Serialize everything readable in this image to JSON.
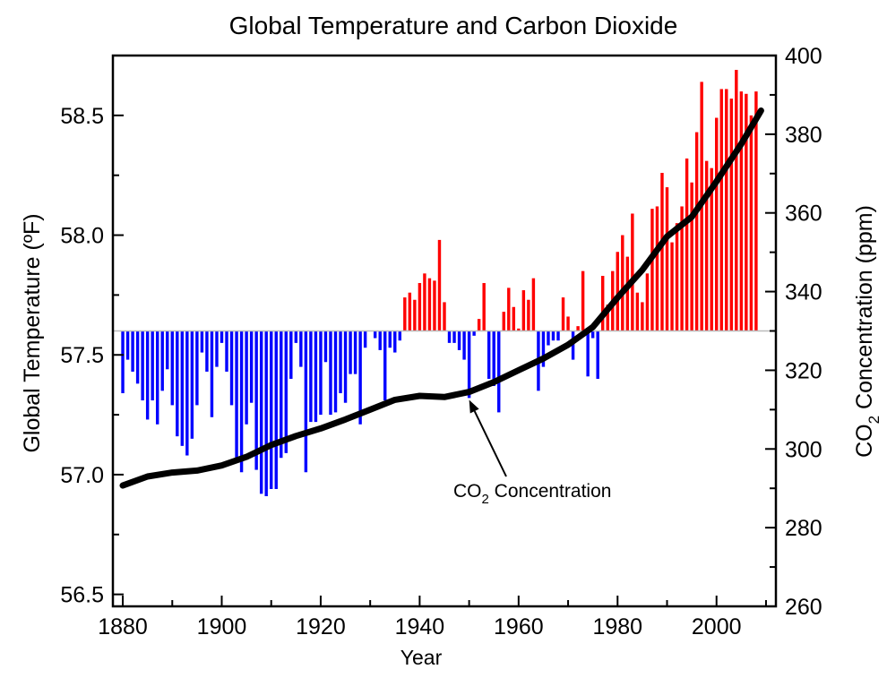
{
  "chart_data": {
    "type": "bar",
    "title": "Global Temperature and Carbon Dioxide",
    "xlabel": "Year",
    "ylabel_left": "Global Temperature (ºF)",
    "ylabel_right": {
      "prefix": "CO",
      "sub": "2",
      "suffix": " Concentration (ppm)"
    },
    "xlim": [
      1878,
      2012
    ],
    "ylim_left": [
      56.45,
      58.75
    ],
    "ylim_right": [
      260,
      400
    ],
    "x_ticks": [
      1880,
      1900,
      1920,
      1940,
      1960,
      1980,
      2000
    ],
    "x_tick_labels": [
      "1880",
      "1900",
      "1920",
      "1940",
      "1960",
      "1980",
      "2000"
    ],
    "y_left_ticks": [
      56.5,
      57.0,
      57.5,
      58.0,
      58.5
    ],
    "y_left_tick_labels": [
      "56.5",
      "57.0",
      "57.5",
      "58.0",
      "58.5"
    ],
    "y_right_ticks": [
      260,
      280,
      300,
      320,
      340,
      360,
      380,
      400
    ],
    "y_right_tick_labels": [
      "260",
      "280",
      "300",
      "320",
      "340",
      "360",
      "380",
      "400"
    ],
    "baseline": 57.6,
    "colors": {
      "above": "#ff0000",
      "below": "#0000ff",
      "co2_line": "#000000",
      "baseline": "#bbbbbb"
    },
    "series": [
      {
        "kind": "bar",
        "axis": "left",
        "start_year": 1880,
        "values": [
          57.34,
          57.48,
          57.43,
          57.38,
          57.31,
          57.23,
          57.31,
          57.21,
          57.35,
          57.44,
          57.29,
          57.16,
          57.12,
          57.08,
          57.15,
          57.29,
          57.51,
          57.43,
          57.24,
          57.45,
          57.55,
          57.43,
          57.29,
          57.07,
          57.01,
          57.21,
          57.3,
          57.02,
          56.92,
          56.91,
          56.94,
          56.94,
          57.07,
          57.09,
          57.4,
          57.55,
          57.45,
          57.01,
          57.22,
          57.22,
          57.25,
          57.47,
          57.25,
          57.26,
          57.34,
          57.3,
          57.42,
          57.42,
          57.21,
          57.53,
          57.6,
          57.57,
          57.52,
          57.31,
          57.53,
          57.51,
          57.56,
          57.74,
          57.76,
          57.73,
          57.8,
          57.84,
          57.82,
          57.81,
          57.98,
          57.72,
          57.55,
          57.55,
          57.52,
          57.48,
          57.32,
          57.58,
          57.65,
          57.8,
          57.4,
          57.37,
          57.26,
          57.68,
          57.78,
          57.7,
          57.61,
          57.77,
          57.73,
          57.82,
          57.35,
          57.45,
          57.54,
          57.56,
          57.56,
          57.74,
          57.66,
          57.48,
          57.62,
          57.85,
          57.41,
          57.57,
          57.4,
          57.83,
          57.71,
          57.85,
          57.93,
          58.0,
          57.91,
          58.09,
          57.76,
          57.72,
          57.84,
          58.11,
          58.12,
          58.26,
          58.2,
          57.97,
          58.05,
          58.12,
          58.32,
          58.22,
          58.43,
          58.64,
          58.31,
          58.28,
          58.49,
          58.61,
          58.61,
          58.57,
          58.69,
          58.6,
          58.59,
          58.5,
          58.6
        ]
      },
      {
        "kind": "line",
        "name": "CO2 Concentration",
        "axis": "right",
        "x": [
          1880,
          1885,
          1890,
          1895,
          1900,
          1905,
          1910,
          1915,
          1920,
          1925,
          1930,
          1935,
          1940,
          1945,
          1950,
          1955,
          1960,
          1965,
          1970,
          1975,
          1980,
          1985,
          1990,
          1995,
          2000,
          2005,
          2009
        ],
        "values": [
          290.7,
          293.0,
          294.0,
          294.5,
          295.8,
          298.0,
          301.0,
          303.3,
          305.2,
          307.5,
          310.0,
          312.5,
          313.5,
          313.2,
          314.5,
          317.0,
          320.0,
          323.0,
          326.5,
          331.0,
          338.5,
          345.5,
          354.0,
          359.0,
          368.0,
          377.5,
          386.0
        ]
      }
    ],
    "annotation": {
      "text_prefix": "CO",
      "text_sub": "2",
      "text_suffix": " Concentration",
      "points_to_year": 1950,
      "points_to_value": 314.3
    }
  }
}
